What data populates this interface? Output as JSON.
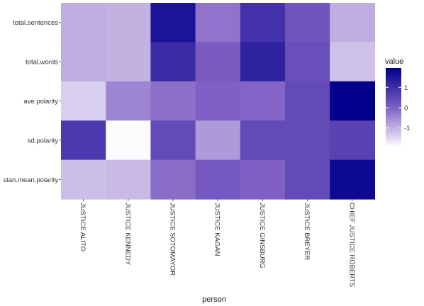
{
  "chart_data": {
    "type": "heatmap",
    "title": "",
    "xlabel": "person",
    "ylabel": "",
    "x_categories": [
      "JUSTICE ALITO",
      "JUSTICE KENNEDY",
      "JUSTICE SOTOMAYOR",
      "JUSTICE KAGAN",
      "JUSTICE GINSBURG",
      "JUSTICE BREYER",
      "CHIEF JUSTICE ROBERTS"
    ],
    "y_categories": [
      "total.sentences",
      "total.words",
      "ave.polarity",
      "sd.polarity",
      "stan.mean.polarity"
    ],
    "values": [
      [
        -0.95,
        -1.0,
        1.55,
        -0.25,
        0.95,
        0.25,
        -0.95
      ],
      [
        -0.95,
        -1.0,
        1.05,
        0.1,
        1.25,
        0.35,
        -1.2
      ],
      [
        -1.35,
        -0.45,
        -0.2,
        0.0,
        -0.05,
        0.45,
        1.95
      ],
      [
        0.8,
        -1.9,
        0.45,
        -0.7,
        0.45,
        0.45,
        0.6
      ],
      [
        -1.15,
        -1.1,
        -0.15,
        0.15,
        0.0,
        0.45,
        1.75
      ]
    ],
    "legend": {
      "title": "value",
      "ticks": [
        1,
        0,
        -1
      ],
      "tick_labels": [
        "1",
        "0",
        "-1"
      ],
      "range": [
        -1.95,
        1.95
      ],
      "low_color": "#ffffff",
      "high_color": "#00008b",
      "placement": "right"
    }
  }
}
